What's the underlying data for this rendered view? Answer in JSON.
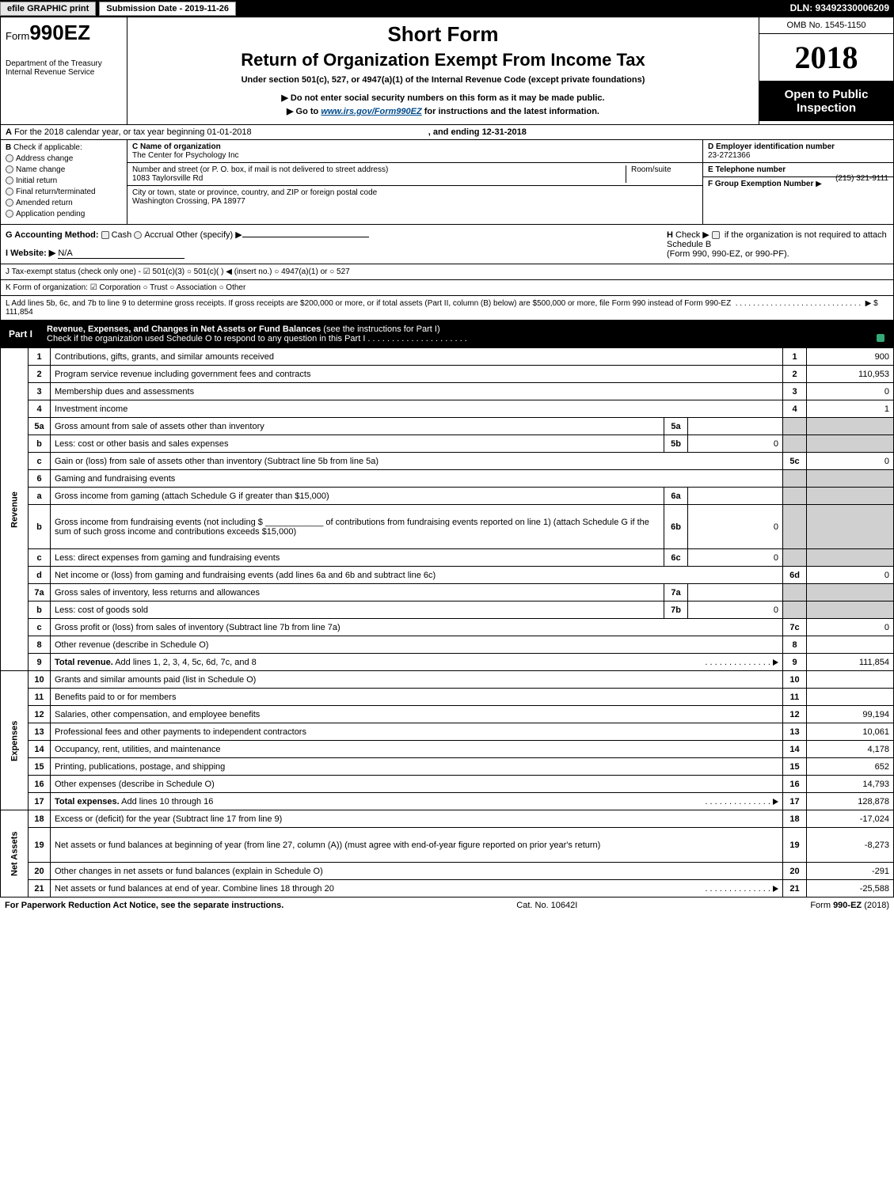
{
  "topbar": {
    "efile_btn": "efile GRAPHIC print",
    "submission_date": "Submission Date - 2019-11-26",
    "dln": "DLN: 93492330006209"
  },
  "header": {
    "form_prefix": "Form",
    "form_number": "990EZ",
    "dept1": "Department of the Treasury",
    "dept2": "Internal Revenue Service",
    "short_form": "Short Form",
    "return_title": "Return of Organization Exempt From Income Tax",
    "under_section": "Under section 501(c), 527, or 4947(a)(1) of the Internal Revenue Code (except private foundations)",
    "notice1_pre": "▶ Do not enter social security numbers on this form as it may be made public.",
    "notice2_pre": "▶ Go to ",
    "notice2_link": "www.irs.gov/Form990EZ",
    "notice2_post": " for instructions and the latest information.",
    "omb": "OMB No. 1545-1150",
    "year": "2018",
    "open_public": "Open to Public Inspection"
  },
  "A": {
    "prefix": "A",
    "text": "For the 2018 calendar year, or tax year beginning 01-01-2018",
    "ending": ", and ending 12-31-2018"
  },
  "B": {
    "label": "B",
    "check_if": "Check if applicable:",
    "items": [
      "Address change",
      "Name change",
      "Initial return",
      "Final return/terminated",
      "Amended return",
      "Application pending"
    ]
  },
  "C": {
    "name_label": "C Name of organization",
    "name_value": "The Center for Psychology Inc",
    "street_label": "Number and street (or P. O. box, if mail is not delivered to street address)",
    "room_label": "Room/suite",
    "street_value": "1083 Taylorsville Rd",
    "city_label": "City or town, state or province, country, and ZIP or foreign postal code",
    "city_value": "Washington Crossing, PA  18977"
  },
  "D": {
    "label": "D Employer identification number",
    "value": "23-2721366"
  },
  "E": {
    "label": "E Telephone number",
    "value": "(215) 321-9111"
  },
  "F": {
    "label": "F Group Exemption Number",
    "arrow": "▶"
  },
  "G": {
    "label": "G Accounting Method:",
    "opt_cash": "Cash",
    "opt_accrual": "Accrual",
    "opt_other": "Other (specify) ▶"
  },
  "H": {
    "label": "H",
    "text1": "Check ▶",
    "text2": "if the organization is not required to attach Schedule B",
    "text3": "(Form 990, 990-EZ, or 990-PF)."
  },
  "I": {
    "label": "I Website: ▶",
    "value": "N/A"
  },
  "J": {
    "text": "J Tax-exempt status (check only one) - ☑ 501(c)(3) ○ 501(c)(  ) ◀ (insert no.) ○ 4947(a)(1) or ○ 527"
  },
  "K": {
    "text": "K Form of organization: ☑ Corporation  ○ Trust  ○ Association  ○ Other"
  },
  "L": {
    "text": "L Add lines 5b, 6c, and 7b to line 9 to determine gross receipts. If gross receipts are $200,000 or more, or if total assets (Part II, column (B) below) are $500,000 or more, file Form 990 instead of Form 990-EZ",
    "arrow": "▶ $ 111,854"
  },
  "part1": {
    "label": "Part I",
    "title_bold": "Revenue, Expenses, and Changes in Net Assets or Fund Balances",
    "title_rest": " (see the instructions for Part I)",
    "check_text": "Check if the organization used Schedule O to respond to any question in this Part I"
  },
  "sections": {
    "revenue": "Revenue",
    "expenses": "Expenses",
    "netassets": "Net Assets"
  },
  "rows": [
    {
      "n": "1",
      "desc": "Contributions, gifts, grants, and similar amounts received",
      "num": "1",
      "val": "900"
    },
    {
      "n": "2",
      "desc": "Program service revenue including government fees and contracts",
      "num": "2",
      "val": "110,953"
    },
    {
      "n": "3",
      "desc": "Membership dues and assessments",
      "num": "3",
      "val": "0"
    },
    {
      "n": "4",
      "desc": "Investment income",
      "num": "4",
      "val": "1"
    },
    {
      "n": "5a",
      "desc": "Gross amount from sale of assets other than inventory",
      "sub": "5a",
      "subval": "",
      "shade": true
    },
    {
      "n": "b",
      "desc": "Less: cost or other basis and sales expenses",
      "sub": "5b",
      "subval": "0",
      "shade": true
    },
    {
      "n": "c",
      "desc": "Gain or (loss) from sale of assets other than inventory (Subtract line 5b from line 5a)",
      "num": "5c",
      "val": "0"
    },
    {
      "n": "6",
      "desc": "Gaming and fundraising events",
      "shade": true,
      "noval": true
    },
    {
      "n": "a",
      "desc": "Gross income from gaming (attach Schedule G if greater than $15,000)",
      "sub": "6a",
      "subval": "",
      "shade": true
    },
    {
      "n": "b",
      "desc": "Gross income from fundraising events (not including $ ____________ of contributions from fundraising events reported on line 1) (attach Schedule G if the sum of such gross income and contributions exceeds $15,000)",
      "sub": "6b",
      "subval": "0",
      "shade": true,
      "tall": true
    },
    {
      "n": "c",
      "desc": "Less: direct expenses from gaming and fundraising events",
      "sub": "6c",
      "subval": "0",
      "shade": true
    },
    {
      "n": "d",
      "desc": "Net income or (loss) from gaming and fundraising events (add lines 6a and 6b and subtract line 6c)",
      "num": "6d",
      "val": "0"
    },
    {
      "n": "7a",
      "desc": "Gross sales of inventory, less returns and allowances",
      "sub": "7a",
      "subval": "",
      "shade": true
    },
    {
      "n": "b",
      "desc": "Less: cost of goods sold",
      "sub": "7b",
      "subval": "0",
      "shade": true
    },
    {
      "n": "c",
      "desc": "Gross profit or (loss) from sales of inventory (Subtract line 7b from line 7a)",
      "num": "7c",
      "val": "0"
    },
    {
      "n": "8",
      "desc": "Other revenue (describe in Schedule O)",
      "num": "8",
      "val": ""
    },
    {
      "n": "9",
      "desc": "Total revenue. Add lines 1, 2, 3, 4, 5c, 6d, 7c, and 8",
      "num": "9",
      "val": "111,854",
      "bold": true,
      "arrow": true
    }
  ],
  "exp_rows": [
    {
      "n": "10",
      "desc": "Grants and similar amounts paid (list in Schedule O)",
      "num": "10",
      "val": ""
    },
    {
      "n": "11",
      "desc": "Benefits paid to or for members",
      "num": "11",
      "val": ""
    },
    {
      "n": "12",
      "desc": "Salaries, other compensation, and employee benefits",
      "num": "12",
      "val": "99,194"
    },
    {
      "n": "13",
      "desc": "Professional fees and other payments to independent contractors",
      "num": "13",
      "val": "10,061"
    },
    {
      "n": "14",
      "desc": "Occupancy, rent, utilities, and maintenance",
      "num": "14",
      "val": "4,178"
    },
    {
      "n": "15",
      "desc": "Printing, publications, postage, and shipping",
      "num": "15",
      "val": "652"
    },
    {
      "n": "16",
      "desc": "Other expenses (describe in Schedule O)",
      "num": "16",
      "val": "14,793"
    },
    {
      "n": "17",
      "desc": "Total expenses. Add lines 10 through 16",
      "num": "17",
      "val": "128,878",
      "bold": true,
      "arrow": true
    }
  ],
  "na_rows": [
    {
      "n": "18",
      "desc": "Excess or (deficit) for the year (Subtract line 17 from line 9)",
      "num": "18",
      "val": "-17,024"
    },
    {
      "n": "19",
      "desc": "Net assets or fund balances at beginning of year (from line 27, column (A)) (must agree with end-of-year figure reported on prior year's return)",
      "num": "19",
      "val": "-8,273",
      "tall": true
    },
    {
      "n": "20",
      "desc": "Other changes in net assets or fund balances (explain in Schedule O)",
      "num": "20",
      "val": "-291"
    },
    {
      "n": "21",
      "desc": "Net assets or fund balances at end of year. Combine lines 18 through 20",
      "num": "21",
      "val": "-25,588",
      "arrow": true
    }
  ],
  "footer": {
    "left": "For Paperwork Reduction Act Notice, see the separate instructions.",
    "mid": "Cat. No. 10642I",
    "right": "Form 990-EZ (2018)"
  }
}
